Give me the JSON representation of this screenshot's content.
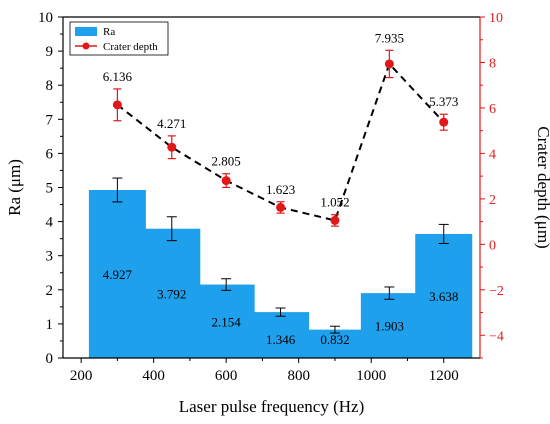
{
  "chart_data": {
    "type": "bar",
    "xlabel": "Laser pulse frequency (Hz)",
    "ylabel": "Ra (μm)",
    "y2label": "Crater depth (μm)",
    "xlim": [
      150,
      1300
    ],
    "ylim": [
      0,
      10
    ],
    "y2lim": [
      -5,
      10
    ],
    "x_ticks": [
      200,
      400,
      600,
      800,
      1000,
      1200
    ],
    "y_ticks": [
      0,
      1,
      2,
      3,
      4,
      5,
      6,
      7,
      8,
      9,
      10
    ],
    "y2_ticks": [
      -4,
      -2,
      0,
      2,
      4,
      6,
      8,
      10
    ],
    "legend_position": "top-left",
    "grid": false,
    "series": [
      {
        "name": "Ra",
        "type": "bar",
        "axis": "left",
        "color": "#1ea0ec",
        "x": [
          300,
          450,
          600,
          750,
          900,
          1050,
          1200
        ],
        "values": [
          4.927,
          3.792,
          2.154,
          1.346,
          0.832,
          1.903,
          3.638
        ],
        "labels": [
          "4.927",
          "3.792",
          "2.154",
          "1.346",
          "0.832",
          "1.903",
          "3.638"
        ],
        "errors": [
          0.35,
          0.35,
          0.17,
          0.12,
          0.1,
          0.18,
          0.28
        ]
      },
      {
        "name": "Crater depth",
        "type": "line",
        "axis": "right",
        "color": "#e01818",
        "line_color": "#000000",
        "line_style": "dashed",
        "x": [
          300,
          450,
          600,
          750,
          900,
          1050,
          1200
        ],
        "values": [
          6.136,
          4.271,
          2.805,
          1.623,
          1.052,
          7.935,
          5.373
        ],
        "labels": [
          "6.136",
          "4.271",
          "2.805",
          "1.623",
          "1.052",
          "7.935",
          "5.373"
        ],
        "errors": [
          0.7,
          0.5,
          0.3,
          0.25,
          0.25,
          0.6,
          0.35
        ]
      }
    ]
  }
}
